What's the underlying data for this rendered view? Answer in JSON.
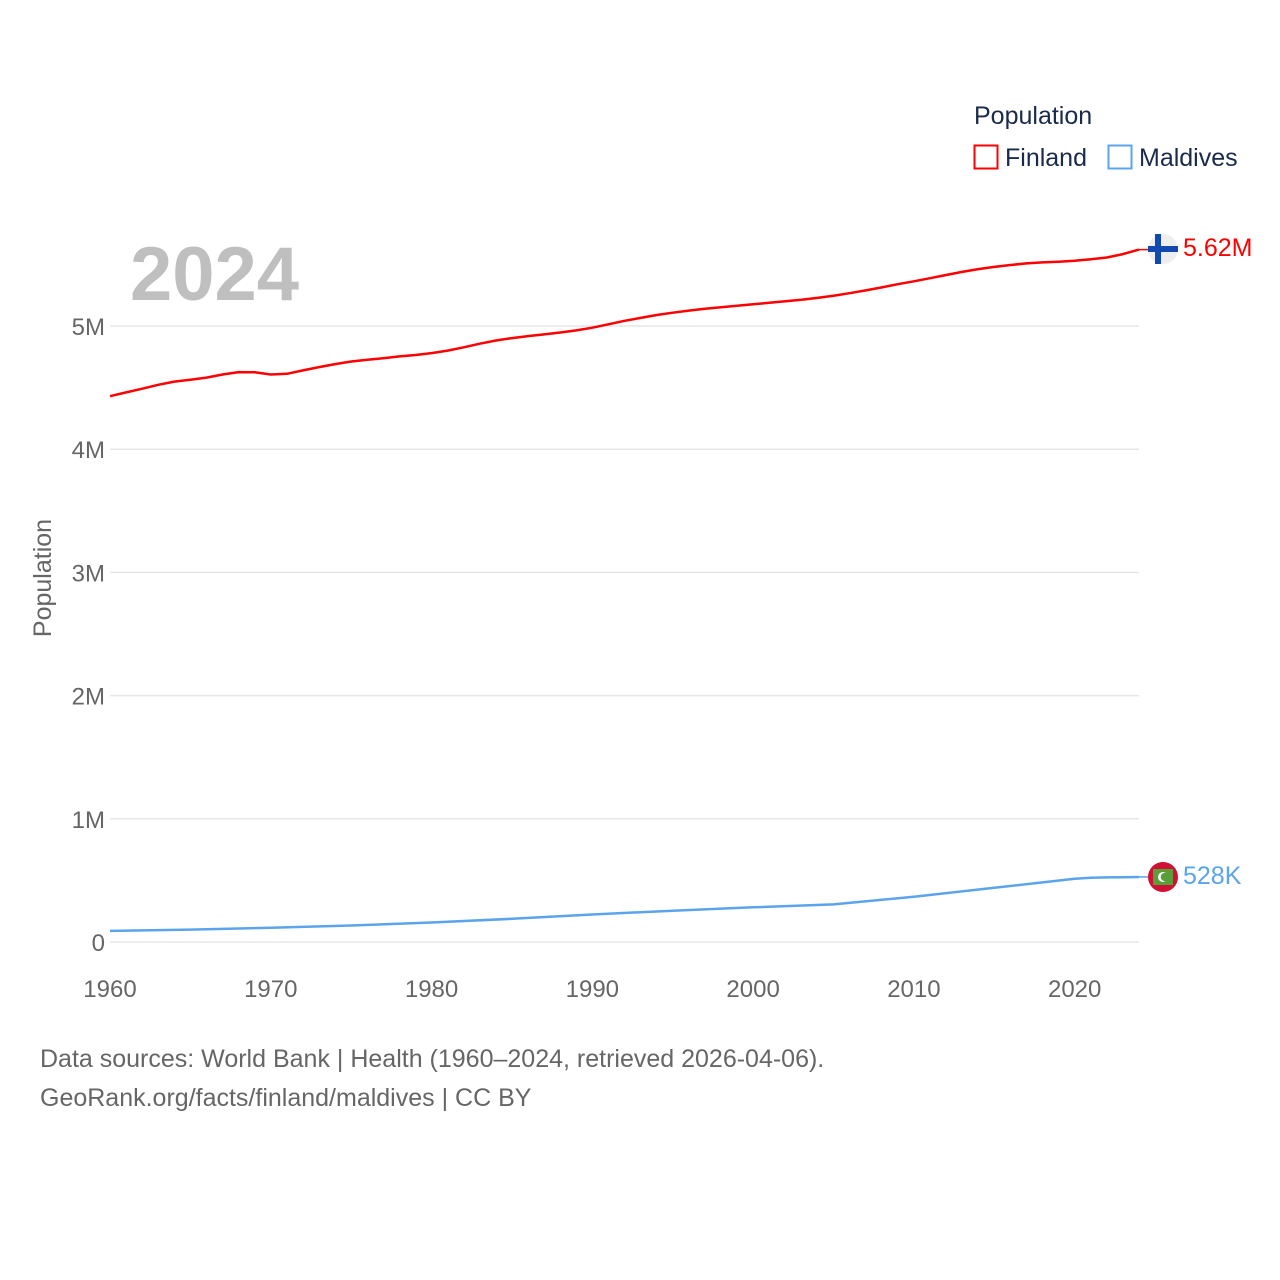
{
  "chart_data": {
    "type": "line",
    "title": "Population",
    "overlay_year": "2024",
    "ylabel": "Population",
    "xlabel": "",
    "xlim": [
      1960,
      2024
    ],
    "ylim": [
      0,
      5750000
    ],
    "x_ticks": [
      1960,
      1970,
      1980,
      1990,
      2000,
      2010,
      2020
    ],
    "y_ticks": [
      {
        "v": 0,
        "label": "0"
      },
      {
        "v": 1000000,
        "label": "1M"
      },
      {
        "v": 2000000,
        "label": "2M"
      },
      {
        "v": 3000000,
        "label": "3M"
      },
      {
        "v": 4000000,
        "label": "4M"
      },
      {
        "v": 5000000,
        "label": "5M"
      }
    ],
    "grid": true,
    "legend_position": "top-right",
    "series": [
      {
        "name": "Finland",
        "color": "#ff0000",
        "end_label": "5.62M",
        "flag_icon": "finland-flag-icon",
        "x": [
          1960,
          1961,
          1962,
          1963,
          1964,
          1965,
          1966,
          1967,
          1968,
          1969,
          1970,
          1971,
          1972,
          1973,
          1974,
          1975,
          1976,
          1977,
          1978,
          1979,
          1980,
          1981,
          1982,
          1983,
          1984,
          1985,
          1986,
          1987,
          1988,
          1989,
          1990,
          1991,
          1992,
          1993,
          1994,
          1995,
          1996,
          1997,
          1998,
          1999,
          2000,
          2001,
          2002,
          2003,
          2004,
          2005,
          2006,
          2007,
          2008,
          2009,
          2010,
          2011,
          2012,
          2013,
          2014,
          2015,
          2016,
          2017,
          2018,
          2019,
          2020,
          2021,
          2022,
          2023,
          2024
        ],
        "values": [
          4430000,
          4461000,
          4491000,
          4523000,
          4549000,
          4564000,
          4581000,
          4606000,
          4626000,
          4624000,
          4606000,
          4612000,
          4640000,
          4666000,
          4691000,
          4712000,
          4726000,
          4739000,
          4753000,
          4765000,
          4780000,
          4800000,
          4827000,
          4856000,
          4882000,
          4902000,
          4918000,
          4932000,
          4947000,
          4964000,
          4986000,
          5014000,
          5042000,
          5066000,
          5089000,
          5108000,
          5125000,
          5140000,
          5153000,
          5165000,
          5176000,
          5188000,
          5201000,
          5213000,
          5228000,
          5246000,
          5266000,
          5289000,
          5313000,
          5339000,
          5363000,
          5388000,
          5414000,
          5439000,
          5462000,
          5480000,
          5495000,
          5508000,
          5516000,
          5522000,
          5530000,
          5541000,
          5556000,
          5584000,
          5620000
        ]
      },
      {
        "name": "Maldives",
        "color": "#5ba4ec",
        "end_label": "528K",
        "flag_icon": "maldives-flag-icon",
        "x": [
          1960,
          1965,
          1970,
          1975,
          1980,
          1985,
          1990,
          1995,
          2000,
          2005,
          2010,
          2015,
          2020,
          2021,
          2022,
          2023,
          2024
        ],
        "values": [
          90000,
          101000,
          115000,
          134000,
          158000,
          188000,
          223000,
          254000,
          282000,
          305000,
          368000,
          440000,
          514000,
          521000,
          524000,
          526000,
          528000
        ]
      }
    ]
  },
  "footer": {
    "line1": "Data sources: World Bank | Health (1960–2024, retrieved 2026-04-06).",
    "line2": "GeoRank.org/facts/finland/maldives | CC BY"
  }
}
